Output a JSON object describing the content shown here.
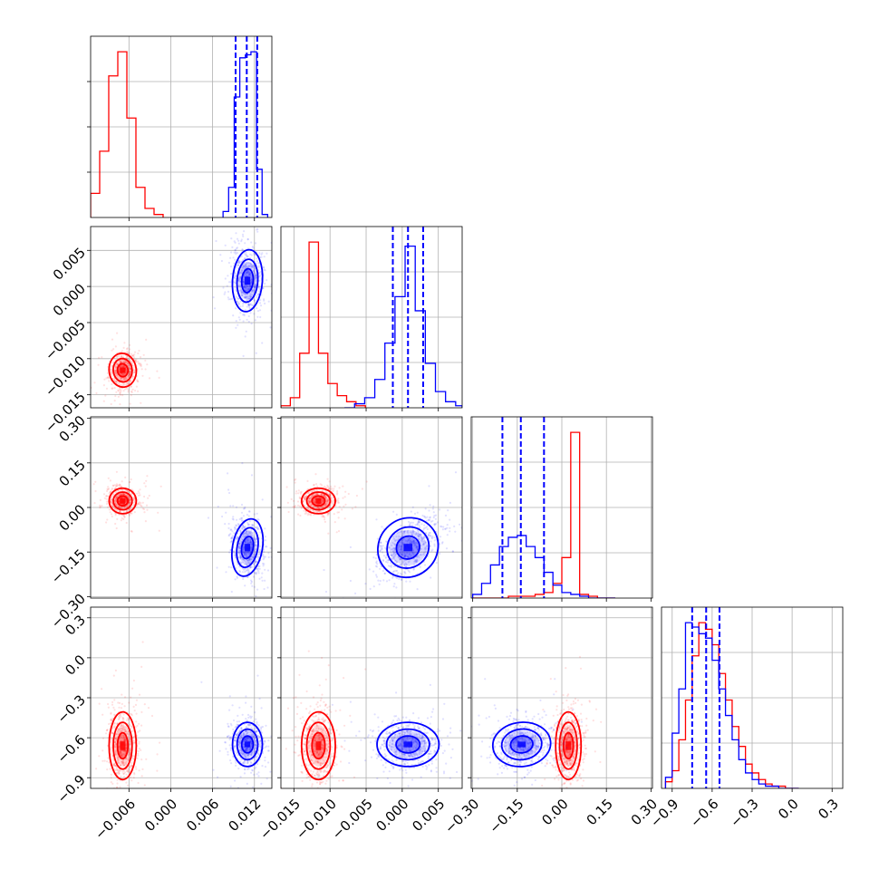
{
  "figure": {
    "type": "corner-plot",
    "accent_colors": {
      "series_a": "#ff0000",
      "series_b": "#0000ff"
    }
  },
  "chart_data": {
    "type": "scatter",
    "layout": "corner (4x4 lower triangle) with histograms on the diagonal",
    "grid": true,
    "legend": "none",
    "parameters": [
      {
        "range": [
          -0.0115,
          0.0145
        ],
        "ticks": [
          -0.006,
          0.0,
          0.006,
          0.012
        ],
        "tick_labels": [
          "−0.006",
          "0.000",
          "0.006",
          "0.012"
        ]
      },
      {
        "range": [
          -0.0168,
          0.0083
        ],
        "ticks": [
          -0.015,
          -0.01,
          -0.005,
          0.0,
          0.005
        ],
        "tick_labels": [
          "−0.015",
          "−0.010",
          "−0.005",
          "0.000",
          "0.005"
        ]
      },
      {
        "range": [
          -0.305,
          0.305
        ],
        "ticks": [
          -0.3,
          -0.15,
          0.0,
          0.15,
          0.3
        ],
        "tick_labels": [
          "−0.30",
          "−0.15",
          "0.00",
          "0.15",
          "0.30"
        ]
      },
      {
        "range": [
          -0.98,
          0.38
        ],
        "ticks": [
          -0.9,
          -0.6,
          -0.3,
          0.0,
          0.3
        ],
        "tick_labels": [
          "−0.9",
          "−0.6",
          "−0.3",
          "0.0",
          "0.3"
        ]
      }
    ],
    "series": [
      {
        "color": "#ff0000",
        "means": [
          -0.0069,
          -0.0116,
          0.022,
          -0.66
        ],
        "stds": [
          0.001,
          0.0012,
          0.022,
          0.13
        ],
        "histograms": [
          {
            "edges": [
              -0.0115,
              -0.0102,
              -0.0089,
              -0.0076,
              -0.0063,
              -0.005,
              -0.0037,
              -0.0024,
              -0.0011
            ],
            "counts": [
              8,
              22,
              47,
              55,
              33,
              10,
              3,
              1
            ]
          },
          {
            "edges": [
              -0.0168,
              -0.0155,
              -0.0142,
              -0.0129,
              -0.0116,
              -0.0103,
              -0.009,
              -0.0077,
              -0.0064,
              -0.0051
            ],
            "counts": [
              1,
              5,
              27,
              82,
              27,
              12,
              6,
              3,
              1
            ]
          },
          {
            "edges": [
              -0.3,
              -0.27,
              -0.24,
              -0.21,
              -0.18,
              -0.15,
              -0.12,
              -0.09,
              -0.06,
              -0.03,
              0.0,
              0.03,
              0.06,
              0.09,
              0.12,
              0.15,
              0.18
            ],
            "counts": [
              0,
              0,
              0,
              0,
              1,
              1,
              1,
              2,
              3,
              8,
              22,
              90,
              2,
              1,
              0,
              0
            ]
          },
          {
            "edges": [
              -0.95,
              -0.9,
              -0.85,
              -0.8,
              -0.75,
              -0.7,
              -0.65,
              -0.6,
              -0.55,
              -0.5,
              -0.45,
              -0.4,
              -0.35,
              -0.3,
              -0.25,
              -0.2,
              -0.15,
              -0.1,
              -0.05,
              0.0,
              0.05
            ],
            "counts": [
              3,
              8,
              22,
              40,
              60,
              75,
              72,
              65,
              52,
              40,
              28,
              19,
              11,
              7,
              4,
              2,
              1,
              1,
              0,
              0
            ]
          }
        ]
      },
      {
        "color": "#0000ff",
        "means": [
          0.011,
          0.0008,
          -0.135,
          -0.65
        ],
        "stds": [
          0.0011,
          0.0022,
          0.05,
          0.085
        ],
        "quantiles": [
          [
            0.0093,
            0.0109,
            0.0124
          ],
          [
            -0.0013,
            0.0008,
            0.0029
          ],
          [
            -0.2,
            -0.138,
            -0.06
          ],
          [
            -0.75,
            -0.645,
            -0.545
          ]
        ],
        "histograms": [
          {
            "edges": [
              0.0075,
              0.0083,
              0.0091,
              0.0099,
              0.0107,
              0.0115,
              0.0123,
              0.0131,
              0.0139
            ],
            "counts": [
              2,
              10,
              40,
              53,
              54,
              55,
              16,
              1
            ]
          },
          {
            "edges": [
              -0.008,
              -0.0066,
              -0.0052,
              -0.0038,
              -0.0024,
              -0.001,
              0.0004,
              0.0018,
              0.0032,
              0.0046,
              0.006,
              0.0074,
              0.0083
            ],
            "counts": [
              0,
              2,
              5,
              14,
              32,
              55,
              80,
              48,
              22,
              8,
              3,
              1
            ]
          },
          {
            "edges": [
              -0.3,
              -0.27,
              -0.24,
              -0.21,
              -0.18,
              -0.15,
              -0.12,
              -0.09,
              -0.06,
              -0.03,
              0.0,
              0.03,
              0.06,
              0.09,
              0.12,
              0.15,
              0.18
            ],
            "counts": [
              2,
              8,
              18,
              28,
              33,
              34,
              28,
              22,
              14,
              7,
              3,
              2,
              1,
              0,
              0,
              0
            ]
          },
          {
            "edges": [
              -0.95,
              -0.9,
              -0.85,
              -0.8,
              -0.75,
              -0.7,
              -0.65,
              -0.6,
              -0.55,
              -0.5,
              -0.45,
              -0.4,
              -0.35,
              -0.3,
              -0.25,
              -0.2,
              -0.15,
              -0.1,
              -0.05,
              0.0,
              0.05
            ],
            "counts": [
              5,
              25,
              45,
              75,
              73,
              70,
              68,
              58,
              45,
              33,
              22,
              13,
              7,
              4,
              2,
              1,
              1,
              0,
              0,
              0
            ]
          }
        ]
      }
    ]
  }
}
